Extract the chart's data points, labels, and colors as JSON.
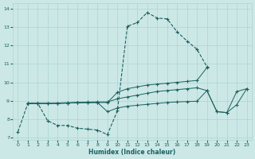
{
  "xlabel": "Humidex (Indice chaleur)",
  "xlim": [
    -0.5,
    23.5
  ],
  "ylim": [
    6.85,
    14.3
  ],
  "yticks": [
    7,
    8,
    9,
    10,
    11,
    12,
    13,
    14
  ],
  "xticks": [
    0,
    1,
    2,
    3,
    4,
    5,
    6,
    7,
    8,
    9,
    10,
    11,
    12,
    13,
    14,
    15,
    16,
    17,
    18,
    19,
    20,
    21,
    22,
    23
  ],
  "bg_color": "#cce8e6",
  "grid_color": "#aad4d2",
  "line_color": "#1a6060",
  "line1_x": [
    0,
    1,
    2,
    3,
    4,
    5,
    6,
    7,
    8,
    9,
    10,
    11,
    12,
    13,
    14,
    15,
    16,
    17,
    18,
    19,
    20,
    21,
    22,
    23
  ],
  "line1_y": [
    7.3,
    8.85,
    8.85,
    7.9,
    7.65,
    7.65,
    7.5,
    7.45,
    7.4,
    7.15,
    8.45,
    13.05,
    13.25,
    13.8,
    13.5,
    13.45,
    12.75,
    12.25,
    11.8,
    10.85,
    null,
    null,
    null,
    null
  ],
  "line2_x": [
    0,
    1,
    2,
    3,
    4,
    5,
    6,
    7,
    8,
    9,
    10,
    11,
    12,
    13,
    14,
    15,
    16,
    17,
    18,
    19,
    20,
    21,
    22,
    23
  ],
  "line2_y": [
    null,
    8.85,
    8.85,
    8.85,
    8.85,
    8.87,
    8.9,
    8.9,
    8.9,
    8.9,
    9.45,
    9.65,
    9.75,
    9.85,
    9.9,
    9.95,
    10.0,
    10.05,
    10.1,
    10.8,
    null,
    null,
    null,
    null
  ],
  "line3_x": [
    0,
    1,
    2,
    3,
    4,
    5,
    6,
    7,
    8,
    9,
    10,
    11,
    12,
    13,
    14,
    15,
    16,
    17,
    18,
    19,
    20,
    21,
    22,
    23
  ],
  "line3_y": [
    null,
    8.85,
    8.85,
    8.85,
    8.87,
    8.89,
    8.9,
    8.92,
    8.93,
    8.93,
    9.1,
    9.2,
    9.3,
    9.4,
    9.5,
    9.55,
    9.6,
    9.65,
    9.7,
    9.55,
    8.4,
    8.35,
    9.5,
    9.65
  ],
  "line4_x": [
    0,
    1,
    2,
    3,
    4,
    5,
    6,
    7,
    8,
    9,
    10,
    11,
    12,
    13,
    14,
    15,
    16,
    17,
    18,
    19,
    20,
    21,
    22,
    23
  ],
  "line4_y": [
    null,
    8.85,
    8.85,
    8.85,
    8.85,
    8.87,
    8.88,
    8.89,
    8.9,
    8.4,
    8.6,
    8.7,
    8.75,
    8.8,
    8.85,
    8.9,
    8.93,
    8.95,
    8.97,
    9.55,
    8.4,
    8.35,
    8.78,
    9.65
  ]
}
